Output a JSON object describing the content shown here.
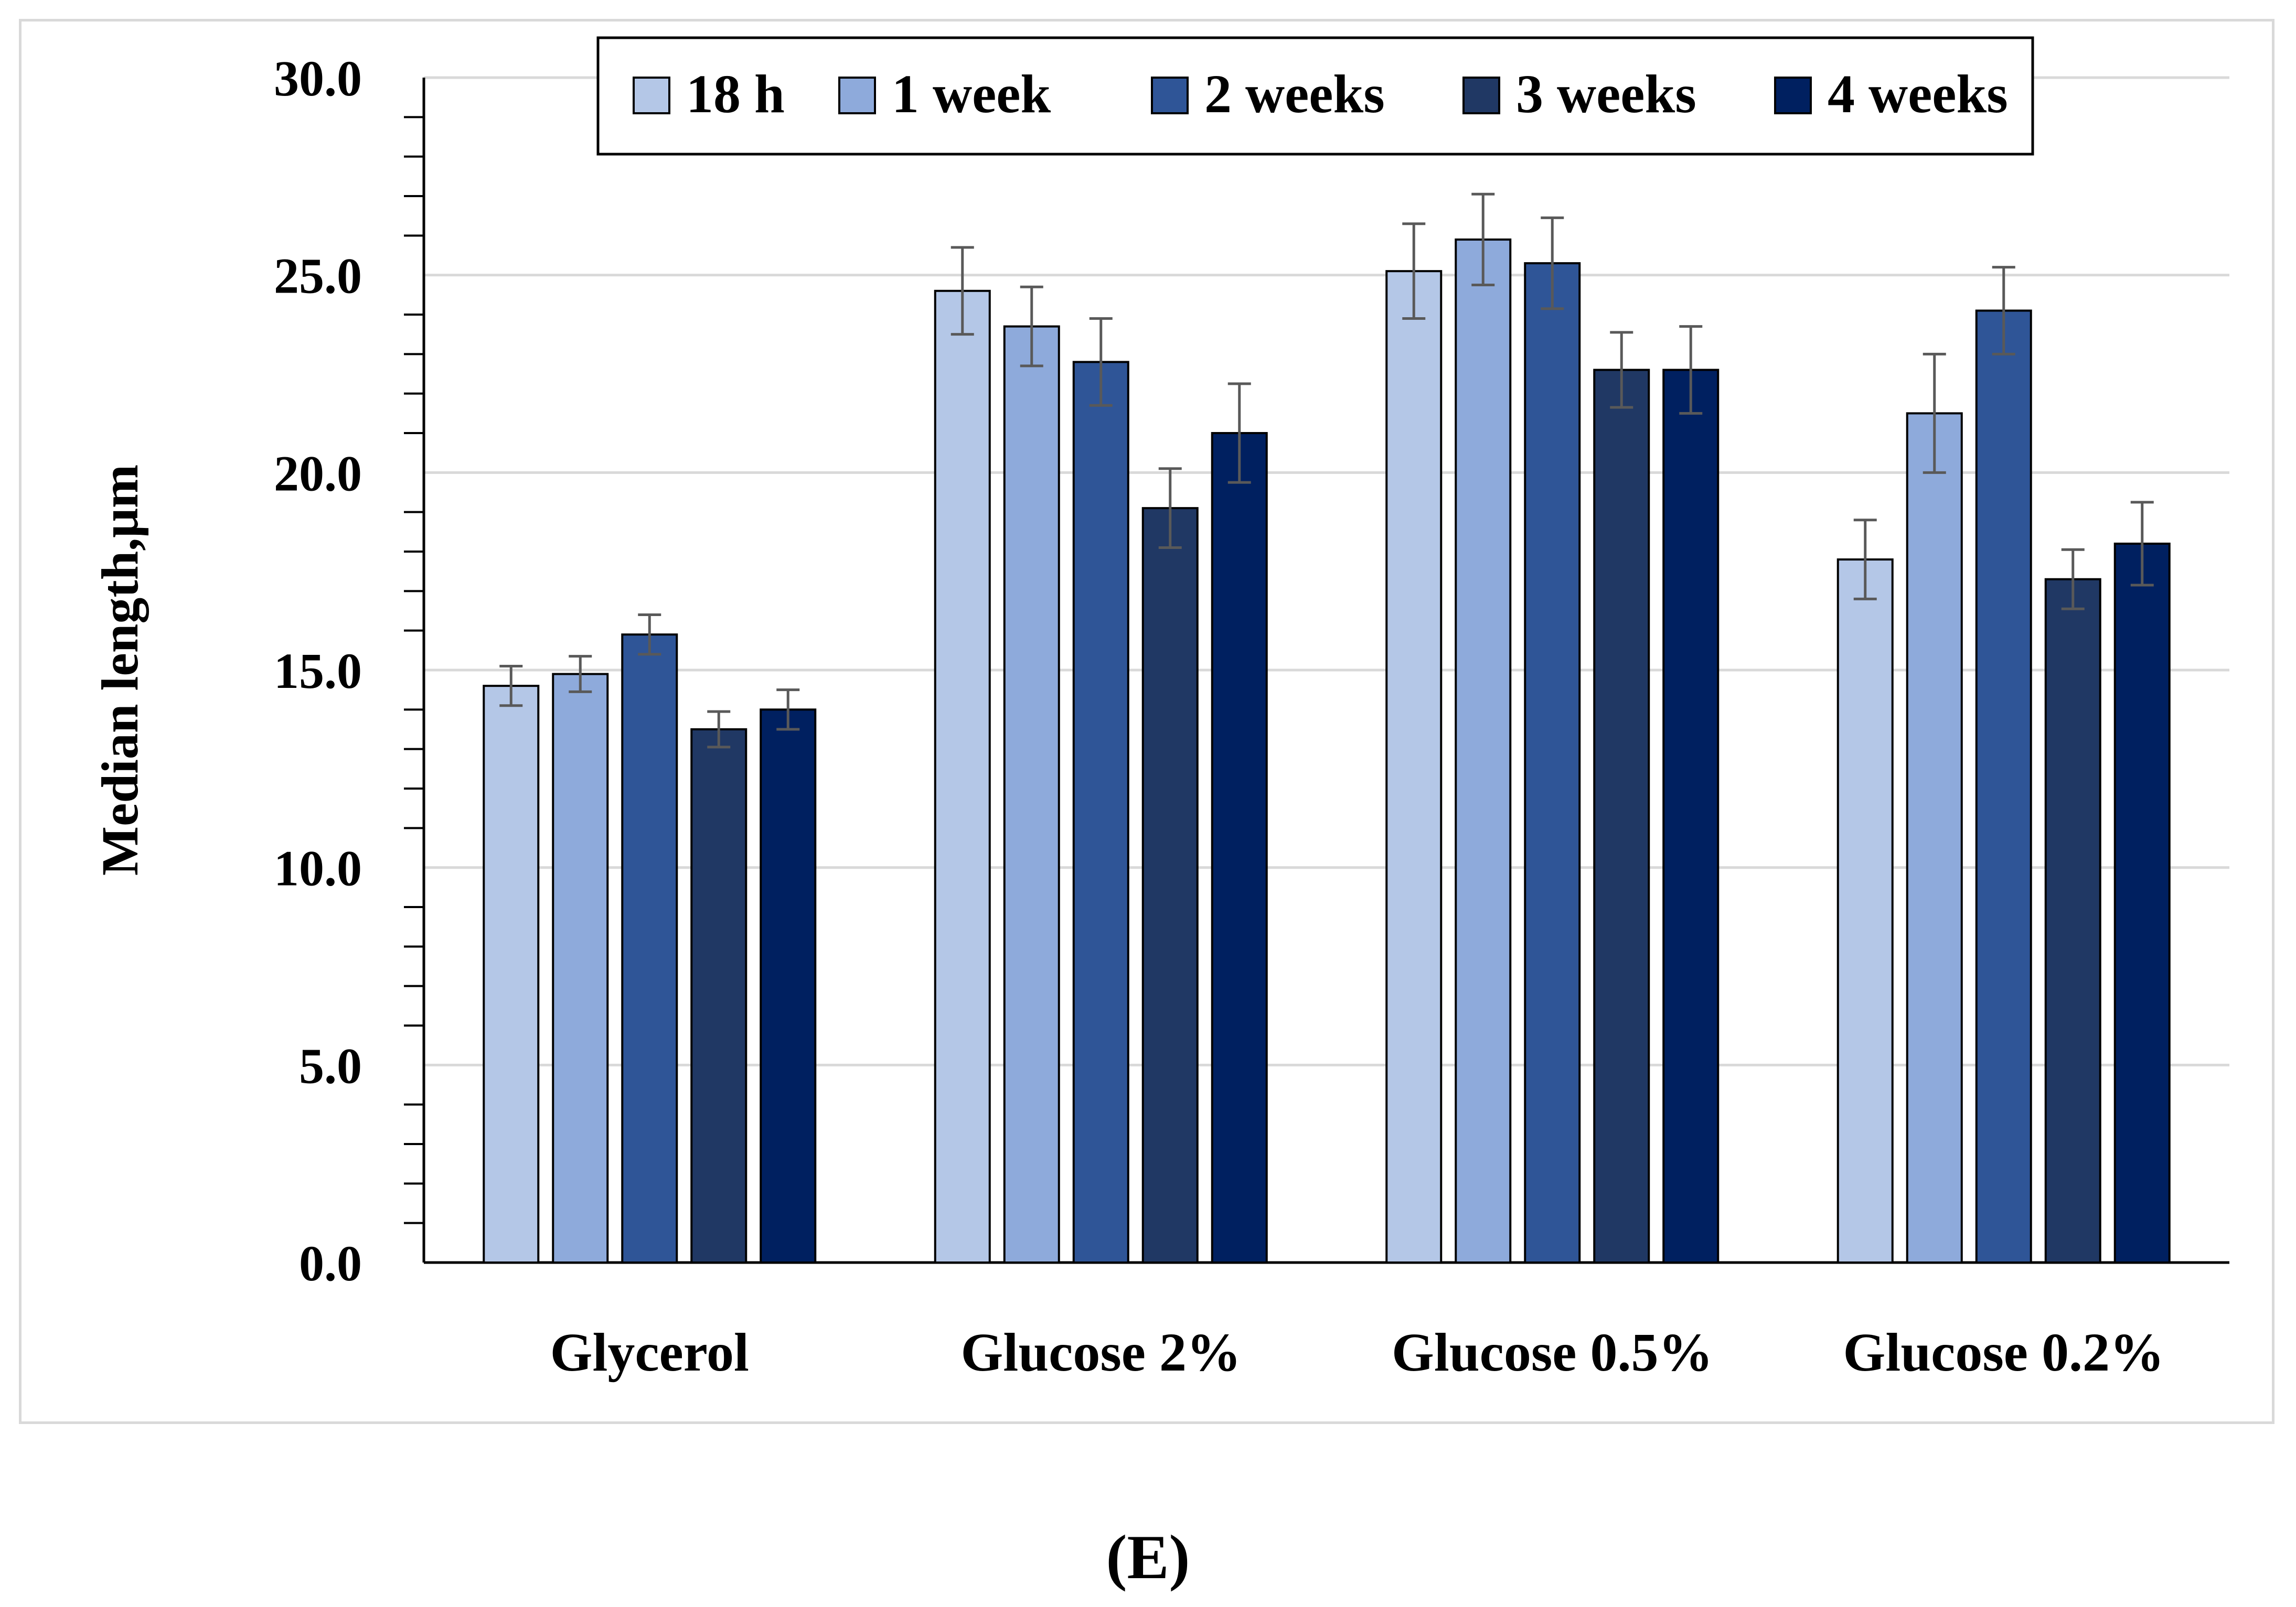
{
  "chart_data": {
    "type": "bar",
    "title": "",
    "xlabel": "",
    "ylabel": "Median length,μm",
    "ylim": [
      0,
      30
    ],
    "y_major_step": 5,
    "y_tick_labels": [
      "0.0",
      "5.0",
      "10.0",
      "15.0",
      "20.0",
      "25.0",
      "30.0"
    ],
    "grid": "horizontal major",
    "legend_position": "top",
    "error_bars": true,
    "categories": [
      "Glycerol",
      "Glucose 2%",
      "Glucose 0.5%",
      "Glucose 0.2%"
    ],
    "series": [
      {
        "name": "18 h",
        "color": "#b4c7e7",
        "values": [
          14.6,
          24.6,
          25.1,
          17.8
        ],
        "errors": [
          0.5,
          1.1,
          1.2,
          1.0
        ]
      },
      {
        "name": "1 week",
        "color": "#8eaadb",
        "values": [
          14.9,
          23.7,
          25.9,
          21.5
        ],
        "errors": [
          0.45,
          1.0,
          1.15,
          1.5
        ]
      },
      {
        "name": "2 weeks",
        "color": "#2f5597",
        "values": [
          15.9,
          22.8,
          25.3,
          24.1
        ],
        "errors": [
          0.5,
          1.1,
          1.15,
          1.1
        ]
      },
      {
        "name": "3 weeks",
        "color": "#203864",
        "values": [
          13.5,
          19.1,
          22.6,
          17.3
        ],
        "errors": [
          0.45,
          1.0,
          0.95,
          0.75
        ]
      },
      {
        "name": "4 weeks",
        "color": "#002060",
        "values": [
          14.0,
          21.0,
          22.6,
          18.2
        ],
        "errors": [
          0.5,
          1.25,
          1.1,
          1.05
        ]
      }
    ]
  },
  "panel_label": "(E)"
}
